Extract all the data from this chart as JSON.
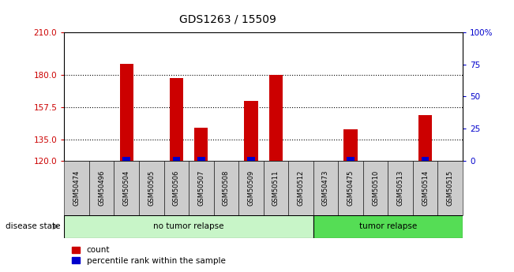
{
  "title": "GDS1263 / 15509",
  "samples": [
    "GSM50474",
    "GSM50496",
    "GSM50504",
    "GSM50505",
    "GSM50506",
    "GSM50507",
    "GSM50508",
    "GSM50509",
    "GSM50511",
    "GSM50512",
    "GSM50473",
    "GSM50475",
    "GSM50510",
    "GSM50513",
    "GSM50514",
    "GSM50515"
  ],
  "counts": [
    120,
    120,
    188,
    120,
    178,
    143,
    120,
    162,
    180,
    120,
    120,
    142,
    120,
    120,
    152,
    120
  ],
  "percentiles": [
    null,
    null,
    1,
    null,
    1,
    1,
    null,
    1,
    null,
    null,
    null,
    1,
    null,
    null,
    1,
    null
  ],
  "group_labels": [
    "no tumor relapse",
    "tumor relapse"
  ],
  "group_sizes": [
    10,
    6
  ],
  "ylim_left": [
    120,
    210
  ],
  "yticks_left": [
    120,
    135,
    157.5,
    180,
    210
  ],
  "ylim_right": [
    0,
    100
  ],
  "yticks_right": [
    0,
    25,
    50,
    75,
    100
  ],
  "bar_color": "#cc0000",
  "percentile_color": "#0000cc",
  "bar_width": 0.55,
  "group_colors_light": [
    "#c8f5c8",
    "#55dd55"
  ],
  "bg_bar_color": "#cccccc",
  "left_tick_color": "#cc0000",
  "right_tick_color": "#0000cc",
  "baseline": 120,
  "label_disease": "disease state",
  "legend_count": "count",
  "legend_pct": "percentile rank within the sample",
  "grid_dotted_at": [
    135,
    157.5,
    180
  ]
}
